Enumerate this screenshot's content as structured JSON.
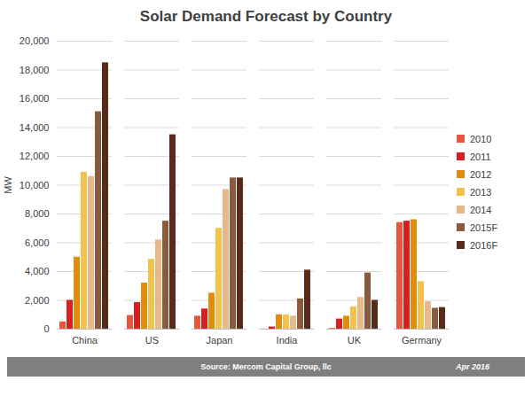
{
  "chart_data": {
    "type": "bar",
    "title": "Solar Demand Forecast by Country",
    "y_label": "MW",
    "categories": [
      "China",
      "US",
      "Japan",
      "India",
      "UK",
      "Germany"
    ],
    "series": [
      {
        "name": "2010",
        "color": "#e8553a",
        "values": [
          500,
          950,
          900,
          10,
          50,
          7400
        ]
      },
      {
        "name": "2011",
        "color": "#d71f1f",
        "values": [
          2000,
          1850,
          1400,
          150,
          700,
          7500
        ]
      },
      {
        "name": "2012",
        "color": "#e38b0f",
        "values": [
          5000,
          3200,
          2500,
          1000,
          900,
          7600
        ]
      },
      {
        "name": "2013",
        "color": "#f2c14e",
        "values": [
          10900,
          4850,
          7000,
          1000,
          1550,
          3300
        ]
      },
      {
        "name": "2014",
        "color": "#e8b887",
        "values": [
          10600,
          6200,
          9700,
          900,
          2200,
          1900
        ]
      },
      {
        "name": "2015F",
        "color": "#8b5a3c",
        "values": [
          15100,
          7500,
          10500,
          2100,
          3900,
          1450
        ]
      },
      {
        "name": "2016F",
        "color": "#5a2a1a",
        "values": [
          18500,
          13500,
          10500,
          4100,
          2000,
          1500
        ]
      }
    ],
    "ylim": [
      0,
      20000
    ],
    "yticks": [
      0,
      {
        "value": 2000,
        "label": "2,000"
      },
      {
        "value": 4000,
        "label": "4,000"
      },
      {
        "value": 6000,
        "label": "6,000"
      },
      {
        "value": 8000,
        "label": "8,000"
      },
      {
        "value": 10000,
        "label": "10,000"
      },
      {
        "value": 12000,
        "label": "12,000"
      },
      {
        "value": 14000,
        "label": "14,000"
      },
      {
        "value": 16000,
        "label": "16,000"
      },
      {
        "value": 18000,
        "label": "18,000"
      },
      {
        "value": 20000,
        "label": "20,000"
      }
    ],
    "grid": true,
    "legend": "right",
    "annotations": [
      "Source: Mercom Capital Group, llc",
      "Apr 2016"
    ]
  }
}
